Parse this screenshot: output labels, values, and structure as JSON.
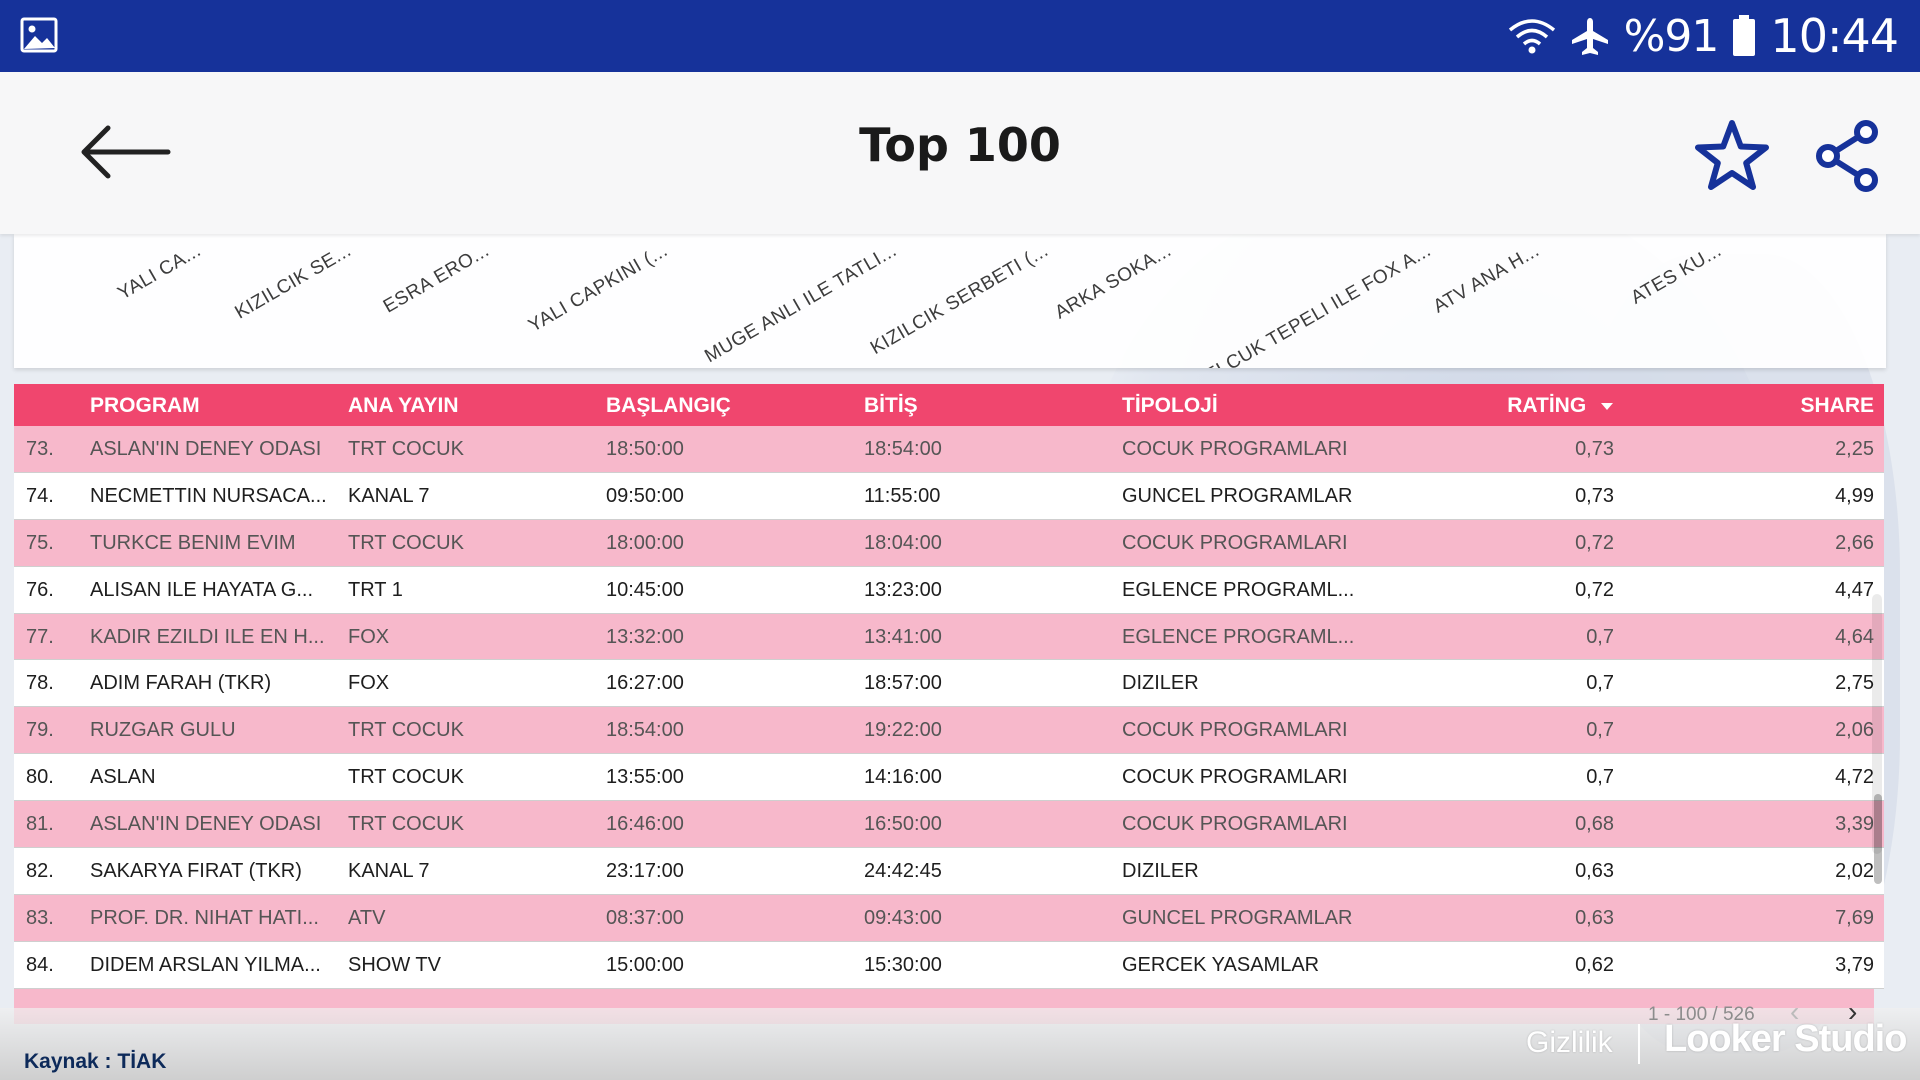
{
  "status_bar": {
    "battery_percent": "%91",
    "time": "10:44"
  },
  "app_bar": {
    "title": "Top 100"
  },
  "chart": {
    "x_labels": [
      "YALI CA...",
      "KIZILCIK SE...",
      "ESRA ERO...",
      "YALI CAPKINI (...",
      "MUGE ANLI ILE TATLI...",
      "KIZILCIK SERBETI (...",
      "ARKA SOKA...",
      "SELCUK TEPELI ILE FOX A...",
      "ATV ANA H...",
      "ATES KU..."
    ]
  },
  "table": {
    "headers": {
      "program": "PROGRAM",
      "ana_yayin": "ANA YAYIN",
      "baslangic": "BAŞLANGIÇ",
      "bitis": "BİTİŞ",
      "tipoloji": "TİPOLOJİ",
      "rating": "RATİNG",
      "share": "SHARE"
    },
    "rows": [
      {
        "idx": "73.",
        "program": "ASLAN'IN DENEY ODASI",
        "ana_yayin": "TRT COCUK",
        "baslangic": "18:50:00",
        "bitis": "18:54:00",
        "tipoloji": "COCUK PROGRAMLARI",
        "rating": "0,73",
        "share": "2,25"
      },
      {
        "idx": "74.",
        "program": "NECMETTIN NURSACA...",
        "ana_yayin": "KANAL 7",
        "baslangic": "09:50:00",
        "bitis": "11:55:00",
        "tipoloji": "GUNCEL PROGRAMLAR",
        "rating": "0,73",
        "share": "4,99"
      },
      {
        "idx": "75.",
        "program": "TURKCE BENIM EVIM",
        "ana_yayin": "TRT COCUK",
        "baslangic": "18:00:00",
        "bitis": "18:04:00",
        "tipoloji": "COCUK PROGRAMLARI",
        "rating": "0,72",
        "share": "2,66"
      },
      {
        "idx": "76.",
        "program": "ALISAN ILE HAYATA G...",
        "ana_yayin": "TRT 1",
        "baslangic": "10:45:00",
        "bitis": "13:23:00",
        "tipoloji": "EGLENCE PROGRAML...",
        "rating": "0,72",
        "share": "4,47"
      },
      {
        "idx": "77.",
        "program": "KADIR EZILDI ILE EN H...",
        "ana_yayin": "FOX",
        "baslangic": "13:32:00",
        "bitis": "13:41:00",
        "tipoloji": "EGLENCE PROGRAML...",
        "rating": "0,7",
        "share": "4,64"
      },
      {
        "idx": "78.",
        "program": "ADIM FARAH (TKR)",
        "ana_yayin": "FOX",
        "baslangic": "16:27:00",
        "bitis": "18:57:00",
        "tipoloji": "DIZILER",
        "rating": "0,7",
        "share": "2,75"
      },
      {
        "idx": "79.",
        "program": "RUZGAR GULU",
        "ana_yayin": "TRT COCUK",
        "baslangic": "18:54:00",
        "bitis": "19:22:00",
        "tipoloji": "COCUK PROGRAMLARI",
        "rating": "0,7",
        "share": "2,06"
      },
      {
        "idx": "80.",
        "program": "ASLAN",
        "ana_yayin": "TRT COCUK",
        "baslangic": "13:55:00",
        "bitis": "14:16:00",
        "tipoloji": "COCUK PROGRAMLARI",
        "rating": "0,7",
        "share": "4,72"
      },
      {
        "idx": "81.",
        "program": "ASLAN'IN DENEY ODASI",
        "ana_yayin": "TRT COCUK",
        "baslangic": "16:46:00",
        "bitis": "16:50:00",
        "tipoloji": "COCUK PROGRAMLARI",
        "rating": "0,68",
        "share": "3,39"
      },
      {
        "idx": "82.",
        "program": "SAKARYA FIRAT (TKR)",
        "ana_yayin": "KANAL 7",
        "baslangic": "23:17:00",
        "bitis": "24:42:45",
        "tipoloji": "DIZILER",
        "rating": "0,63",
        "share": "2,02"
      },
      {
        "idx": "83.",
        "program": "PROF. DR. NIHAT HATI...",
        "ana_yayin": "ATV",
        "baslangic": "08:37:00",
        "bitis": "09:43:00",
        "tipoloji": "GUNCEL PROGRAMLAR",
        "rating": "0,63",
        "share": "7,69"
      },
      {
        "idx": "84.",
        "program": "DIDEM ARSLAN YILMA...",
        "ana_yayin": "SHOW TV",
        "baslangic": "15:00:00",
        "bitis": "15:30:00",
        "tipoloji": "GERCEK YASAMLAR",
        "rating": "0,62",
        "share": "3,79"
      }
    ]
  },
  "pagination": {
    "range": "1 - 100 / 526"
  },
  "footer": {
    "source": "Kaynak : TİAK",
    "privacy": "Gizlilik",
    "brand": "Looker Studio"
  },
  "colors": {
    "status_bar": "#16329a",
    "header_pink": "#f0466e",
    "row_pink": "#f7b8cb",
    "icon_blue": "#16329a"
  },
  "icons": [
    "gallery-icon",
    "wifi-icon",
    "airplane-icon",
    "battery-icon",
    "back-arrow-icon",
    "star-icon",
    "share-icon",
    "sort-desc-icon",
    "chevron-left-icon",
    "chevron-right-icon"
  ]
}
